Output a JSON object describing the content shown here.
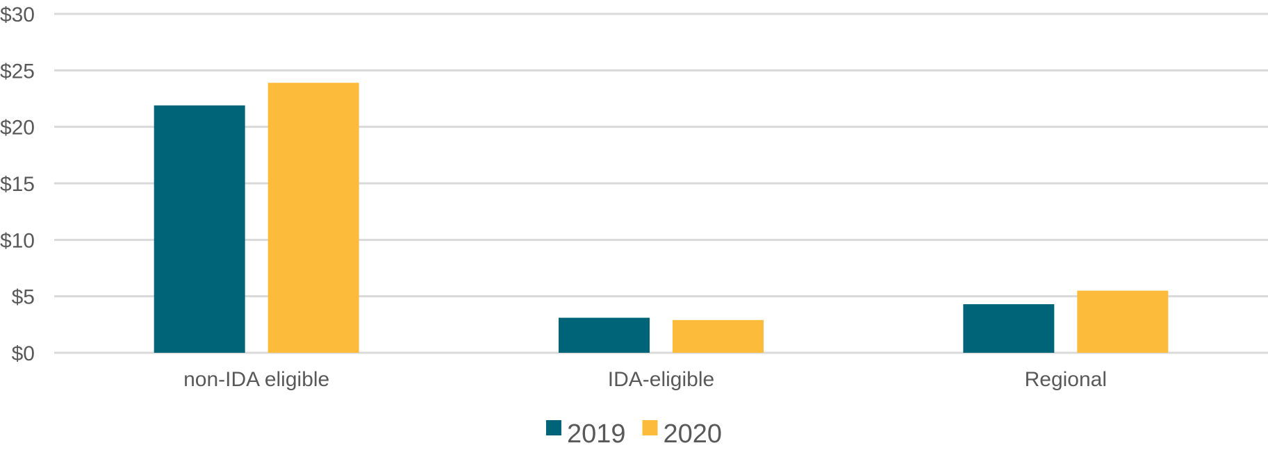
{
  "chart_data": {
    "type": "bar",
    "categories": [
      "non-IDA eligible",
      "IDA-eligible",
      "Regional"
    ],
    "series": [
      {
        "name": "2019",
        "values": [
          21.9,
          3.1,
          4.3
        ],
        "color": "#006479"
      },
      {
        "name": "2020",
        "values": [
          23.9,
          2.9,
          5.5
        ],
        "color": "#FDBB3B"
      }
    ],
    "y_ticks": [
      "$0",
      "$5",
      "$10",
      "$15",
      "$20",
      "$25",
      "$30"
    ],
    "ylim": [
      0,
      30
    ],
    "y_step": 5,
    "grid": true,
    "legend": "bottom-center",
    "gridline_color": "#d9d9d9",
    "text_color": "#595959"
  }
}
